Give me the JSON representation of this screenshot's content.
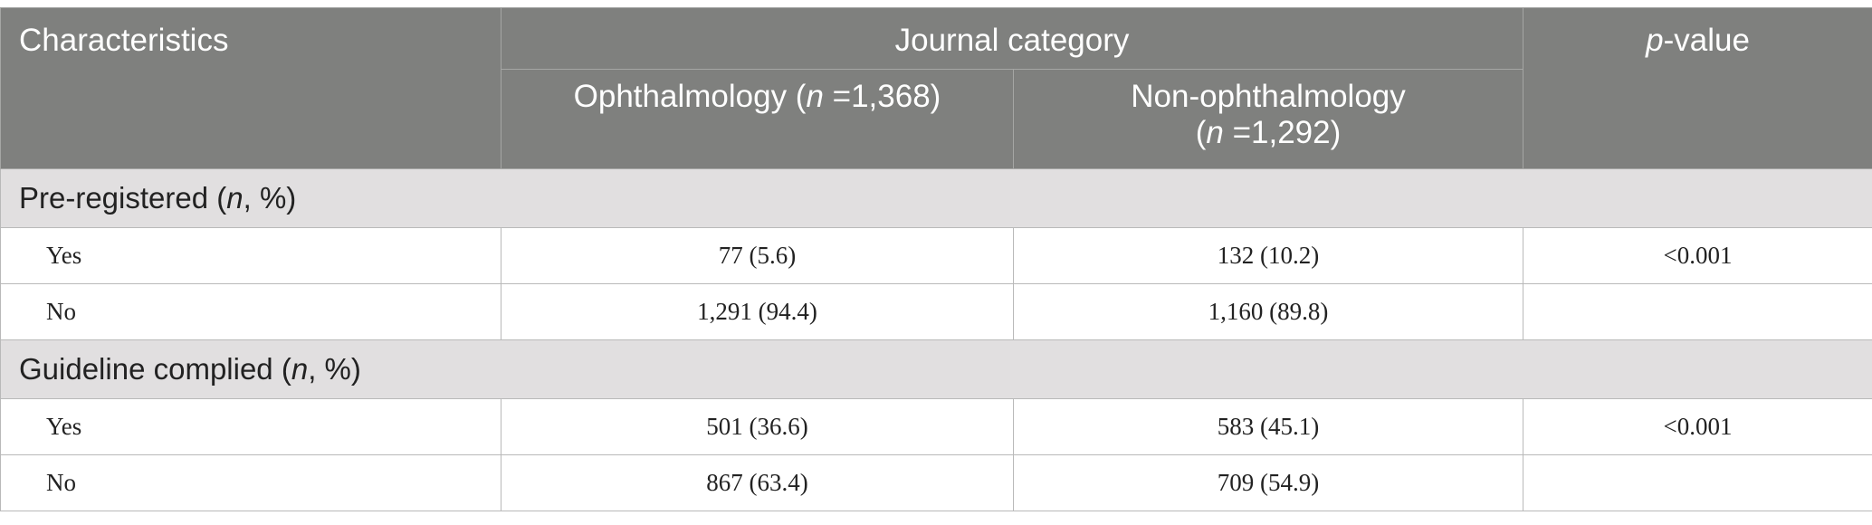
{
  "header": {
    "characteristics": "Characteristics",
    "journal_category": "Journal category",
    "p_value_italic": "p",
    "p_value_rest": "-value",
    "ophthalmology": {
      "label": "Ophthalmology (",
      "n_symbol": "n",
      "n_value": " =1,368)"
    },
    "non_ophthalmology": {
      "label": "Non-ophthalmology",
      "paren_open": "(",
      "n_symbol": "n",
      "n_value": " =1,292)"
    }
  },
  "sections": [
    {
      "title": "Pre-registered (",
      "title_n": "n",
      "title_rest": ", %)",
      "rows": [
        {
          "label": "Yes",
          "ophthalmology": "77 (5.6)",
          "non_ophthalmology": "132 (10.2)",
          "p_value": "<0.001"
        },
        {
          "label": "No",
          "ophthalmology": "1,291 (94.4)",
          "non_ophthalmology": "1,160 (89.8)",
          "p_value": ""
        }
      ]
    },
    {
      "title": "Guideline complied (",
      "title_n": "n",
      "title_rest": ", %)",
      "rows": [
        {
          "label": "Yes",
          "ophthalmology": "501 (36.6)",
          "non_ophthalmology": "583 (45.1)",
          "p_value": "<0.001"
        },
        {
          "label": "No",
          "ophthalmology": "867 (63.4)",
          "non_ophthalmology": "709 (54.9)",
          "p_value": ""
        }
      ]
    }
  ]
}
